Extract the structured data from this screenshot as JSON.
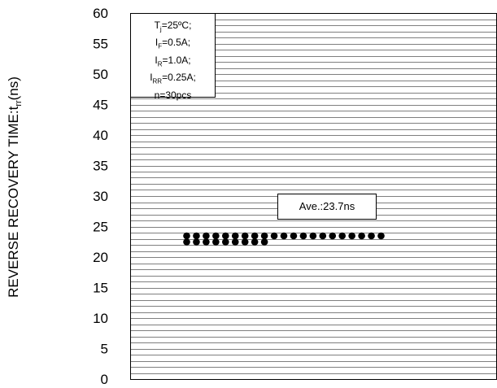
{
  "conditions": {
    "tj": {
      "sym": "T",
      "sub": "j",
      "val": "=25ºC;"
    },
    "if": {
      "sym": "I",
      "sub": "F",
      "val": "=0.5A;"
    },
    "ir": {
      "sym": "I",
      "sub": "R",
      "val": "=1.0A;"
    },
    "irr": {
      "sym": "I",
      "sub": "RR",
      "val": "=0.25A;"
    },
    "n": "n=30pcs"
  },
  "annotation": "Ave.:23.7ns",
  "ylabel": {
    "main": "REVERSE RECOVERY TIME:t",
    "sub": "rr",
    "unit": "(ns)"
  },
  "chart_data": {
    "type": "scatter",
    "title": "",
    "xlabel": "",
    "ylabel": "REVERSE RECOVERY TIME:trr(ns)",
    "ylim": [
      0,
      60
    ],
    "y_ticks": [
      "0",
      "5",
      "10",
      "15",
      "20",
      "25",
      "30",
      "35",
      "40",
      "45",
      "50",
      "55",
      "60"
    ],
    "grid": true,
    "minor_grid_step": 1,
    "marker_color": "#000000",
    "points": [
      {
        "x": 1,
        "y": 24
      },
      {
        "x": 2,
        "y": 24
      },
      {
        "x": 3,
        "y": 24
      },
      {
        "x": 4,
        "y": 24
      },
      {
        "x": 5,
        "y": 24
      },
      {
        "x": 6,
        "y": 24
      },
      {
        "x": 7,
        "y": 24
      },
      {
        "x": 8,
        "y": 24
      },
      {
        "x": 9,
        "y": 24
      },
      {
        "x": 10,
        "y": 24
      },
      {
        "x": 11,
        "y": 24
      },
      {
        "x": 12,
        "y": 24
      },
      {
        "x": 13,
        "y": 24
      },
      {
        "x": 14,
        "y": 24
      },
      {
        "x": 15,
        "y": 24
      },
      {
        "x": 16,
        "y": 24
      },
      {
        "x": 17,
        "y": 24
      },
      {
        "x": 18,
        "y": 24
      },
      {
        "x": 19,
        "y": 24
      },
      {
        "x": 20,
        "y": 24
      },
      {
        "x": 21,
        "y": 24
      },
      {
        "x": 1,
        "y": 23
      },
      {
        "x": 2,
        "y": 23
      },
      {
        "x": 3,
        "y": 23
      },
      {
        "x": 4,
        "y": 23
      },
      {
        "x": 5,
        "y": 23
      },
      {
        "x": 6,
        "y": 23
      },
      {
        "x": 7,
        "y": 23
      },
      {
        "x": 8,
        "y": 23
      },
      {
        "x": 9,
        "y": 23
      }
    ]
  }
}
